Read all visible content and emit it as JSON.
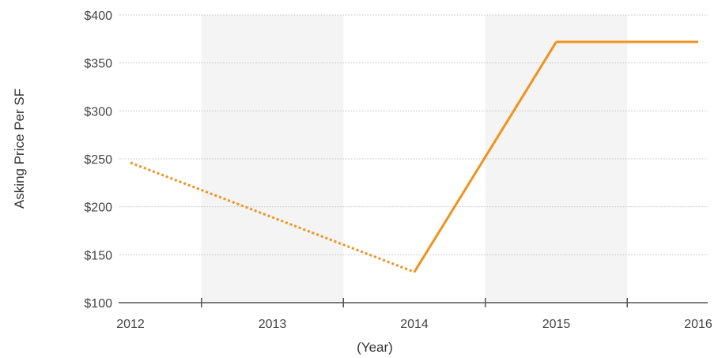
{
  "chart_data": {
    "type": "line",
    "title": "",
    "xlabel": "(Year)",
    "ylabel": "Asking Price Per SF",
    "categories": [
      "2012",
      "2013",
      "2014",
      "2015",
      "2016"
    ],
    "y_tick_labels": [
      "$100",
      "$150",
      "$200",
      "$250",
      "$300",
      "$350",
      "$400"
    ],
    "y_ticks": [
      100,
      150,
      200,
      250,
      300,
      350,
      400
    ],
    "ylim": [
      100,
      400
    ],
    "grid": true,
    "alternating_bands": true,
    "series": [
      {
        "values": [
          246,
          null,
          132,
          372,
          372
        ],
        "color": "#f0921e",
        "segment_styles": [
          "dotted",
          "dotted",
          "solid",
          "solid"
        ]
      }
    ],
    "colors": {
      "line": "#f0921e",
      "band": "#f4f4f4",
      "grid": "#c8c8c8",
      "axis": "#555555"
    }
  }
}
